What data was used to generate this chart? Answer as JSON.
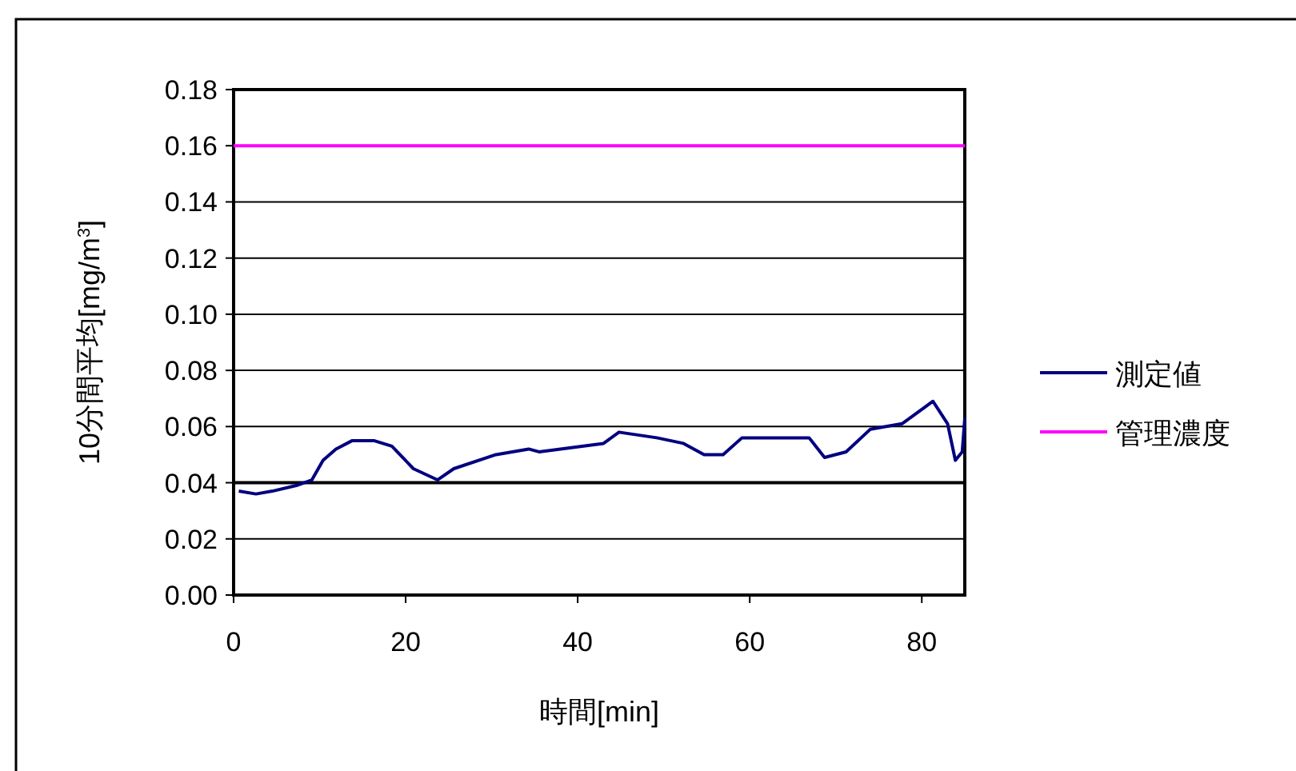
{
  "chart_data": {
    "type": "line",
    "xlabel": "時間[min]",
    "ylabel": "10分間平均[mg/m$^{3}$]",
    "xlim": [
      0,
      85
    ],
    "ylim": [
      0,
      0.18
    ],
    "xticks": [
      0,
      20,
      40,
      60,
      80
    ],
    "yticks": [
      {
        "value": 0,
        "label": "0.00"
      },
      {
        "value": 0.02,
        "label": "0.02"
      },
      {
        "value": 0.04,
        "label": "0.04"
      },
      {
        "value": 0.06,
        "label": "0.06"
      },
      {
        "value": 0.08,
        "label": "0.08"
      },
      {
        "value": 0.1,
        "label": "0.10"
      },
      {
        "value": 0.12,
        "label": "0.12"
      },
      {
        "value": 0.14,
        "label": "0.14"
      },
      {
        "value": 0.16,
        "label": "0.16"
      },
      {
        "value": 0.18,
        "label": "0.18"
      }
    ],
    "grid": "y",
    "legend": "right",
    "marker": "none",
    "line_style": "solid",
    "ref_lines": [
      {
        "axis": "y",
        "value": 0.04,
        "color": "#000000"
      }
    ],
    "series": [
      {
        "name": "測定値",
        "color": "#000080",
        "x": [
          0.6,
          2.6,
          4.5,
          7.3,
          9.1,
          10.4,
          11.9,
          13.8,
          16.3,
          18.4,
          20.9,
          23.7,
          25.6,
          30.5,
          34.3,
          35.5,
          40.5,
          43.0,
          44.8,
          49.2,
          52.3,
          54.7,
          56.9,
          59.1,
          66.9,
          68.7,
          71.2,
          74.0,
          77.7,
          81.3,
          83.0,
          83.9,
          84.7,
          85.0
        ],
        "values": [
          0.037,
          0.036,
          0.037,
          0.039,
          0.041,
          0.048,
          0.052,
          0.055,
          0.055,
          0.053,
          0.045,
          0.041,
          0.045,
          0.05,
          0.052,
          0.051,
          0.053,
          0.054,
          0.058,
          0.056,
          0.054,
          0.05,
          0.05,
          0.056,
          0.056,
          0.049,
          0.051,
          0.059,
          0.061,
          0.069,
          0.061,
          0.048,
          0.051,
          0.063
        ]
      },
      {
        "name": "管理濃度",
        "color": "#ff00ff",
        "x": [
          0,
          85
        ],
        "values": [
          0.16,
          0.16
        ]
      }
    ]
  }
}
